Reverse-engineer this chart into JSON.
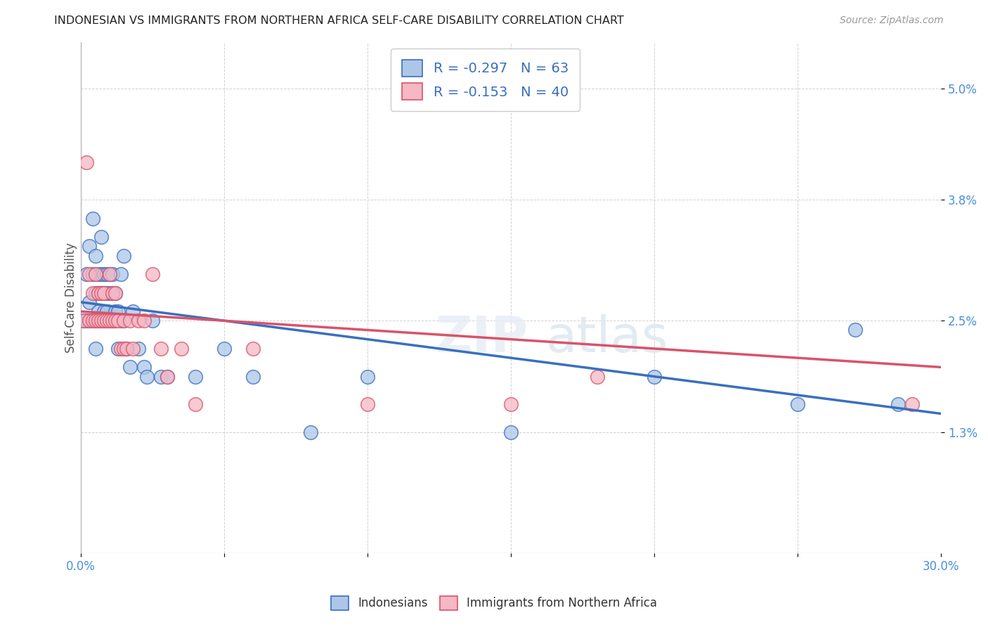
{
  "title": "INDONESIAN VS IMMIGRANTS FROM NORTHERN AFRICA SELF-CARE DISABILITY CORRELATION CHART",
  "source": "Source: ZipAtlas.com",
  "ylabel": "Self-Care Disability",
  "xlim": [
    0.0,
    0.3
  ],
  "ylim": [
    0.0,
    0.055
  ],
  "xticks": [
    0.0,
    0.05,
    0.1,
    0.15,
    0.2,
    0.25,
    0.3
  ],
  "xticklabels": [
    "0.0%",
    "",
    "",
    "",
    "",
    "",
    "30.0%"
  ],
  "ytick_positions": [
    0.013,
    0.025,
    0.038,
    0.05
  ],
  "ytick_labels": [
    "1.3%",
    "2.5%",
    "3.8%",
    "5.0%"
  ],
  "legend_labels": [
    "Indonesians",
    "Immigrants from Northern Africa"
  ],
  "blue_color": "#adc6e8",
  "pink_color": "#f5b8c4",
  "blue_line_color": "#3a6fbf",
  "pink_line_color": "#d9536a",
  "blue_R": -0.297,
  "blue_N": 63,
  "pink_R": -0.153,
  "pink_N": 40,
  "indonesian_x": [
    0.001,
    0.002,
    0.002,
    0.003,
    0.003,
    0.003,
    0.004,
    0.004,
    0.004,
    0.005,
    0.005,
    0.005,
    0.005,
    0.006,
    0.006,
    0.006,
    0.006,
    0.007,
    0.007,
    0.007,
    0.007,
    0.008,
    0.008,
    0.008,
    0.008,
    0.009,
    0.009,
    0.009,
    0.009,
    0.01,
    0.01,
    0.01,
    0.011,
    0.011,
    0.011,
    0.012,
    0.012,
    0.012,
    0.013,
    0.013,
    0.014,
    0.014,
    0.015,
    0.015,
    0.016,
    0.017,
    0.018,
    0.02,
    0.022,
    0.023,
    0.025,
    0.028,
    0.03,
    0.04,
    0.05,
    0.06,
    0.08,
    0.1,
    0.15,
    0.2,
    0.25,
    0.27,
    0.285
  ],
  "indonesian_y": [
    0.025,
    0.03,
    0.025,
    0.033,
    0.027,
    0.025,
    0.036,
    0.03,
    0.025,
    0.032,
    0.028,
    0.025,
    0.022,
    0.03,
    0.028,
    0.026,
    0.025,
    0.034,
    0.03,
    0.028,
    0.025,
    0.03,
    0.028,
    0.026,
    0.025,
    0.03,
    0.028,
    0.026,
    0.025,
    0.03,
    0.028,
    0.025,
    0.03,
    0.028,
    0.025,
    0.028,
    0.026,
    0.025,
    0.026,
    0.022,
    0.03,
    0.025,
    0.032,
    0.025,
    0.022,
    0.02,
    0.026,
    0.022,
    0.02,
    0.019,
    0.025,
    0.019,
    0.019,
    0.019,
    0.022,
    0.019,
    0.013,
    0.019,
    0.013,
    0.019,
    0.016,
    0.024,
    0.016
  ],
  "northern_africa_x": [
    0.001,
    0.002,
    0.003,
    0.003,
    0.004,
    0.004,
    0.005,
    0.005,
    0.006,
    0.006,
    0.007,
    0.007,
    0.008,
    0.008,
    0.009,
    0.01,
    0.01,
    0.011,
    0.011,
    0.012,
    0.012,
    0.013,
    0.014,
    0.015,
    0.015,
    0.016,
    0.017,
    0.018,
    0.02,
    0.022,
    0.025,
    0.028,
    0.03,
    0.035,
    0.04,
    0.06,
    0.1,
    0.15,
    0.18,
    0.29
  ],
  "northern_africa_y": [
    0.025,
    0.042,
    0.03,
    0.025,
    0.028,
    0.025,
    0.03,
    0.025,
    0.028,
    0.025,
    0.028,
    0.025,
    0.028,
    0.025,
    0.025,
    0.03,
    0.025,
    0.028,
    0.025,
    0.028,
    0.025,
    0.025,
    0.022,
    0.025,
    0.022,
    0.022,
    0.025,
    0.022,
    0.025,
    0.025,
    0.03,
    0.022,
    0.019,
    0.022,
    0.016,
    0.022,
    0.016,
    0.016,
    0.019,
    0.016
  ],
  "blue_trend_x0": 0.0,
  "blue_trend_y0": 0.027,
  "blue_trend_x1": 0.3,
  "blue_trend_y1": 0.015,
  "pink_trend_x0": 0.0,
  "pink_trend_y0": 0.026,
  "pink_trend_x1": 0.3,
  "pink_trend_y1": 0.02
}
